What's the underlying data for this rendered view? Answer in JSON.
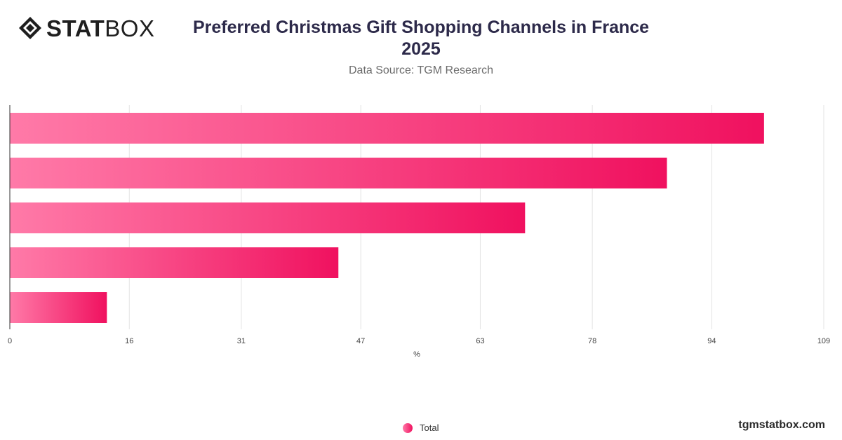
{
  "brand": {
    "logo_bold": "STAT",
    "logo_light": "BOX",
    "website": "tgmstatbox.com"
  },
  "header": {
    "title_line1": "Preferred Christmas Gift Shopping Channels in France",
    "title_line2": "2025",
    "subtitle": "Data Source: TGM Research"
  },
  "colors": {
    "bar_start": "#ff7aa8",
    "bar_end": "#f0115f",
    "grid": "#e3e3e3",
    "axis": "#333333",
    "tick_text": "#444444"
  },
  "chart_data": {
    "type": "bar",
    "orientation": "horizontal",
    "title": "Preferred Christmas Gift Shopping Channels in France 2025",
    "xlabel": "%",
    "ylabel": "",
    "xlim": [
      0,
      109
    ],
    "xticks": [
      0,
      16,
      31,
      47,
      63,
      78,
      94,
      109
    ],
    "grid": true,
    "legend_position": "bottom",
    "series": [
      {
        "name": "Total",
        "values": [
          101,
          88,
          69,
          44,
          13
        ]
      }
    ]
  }
}
